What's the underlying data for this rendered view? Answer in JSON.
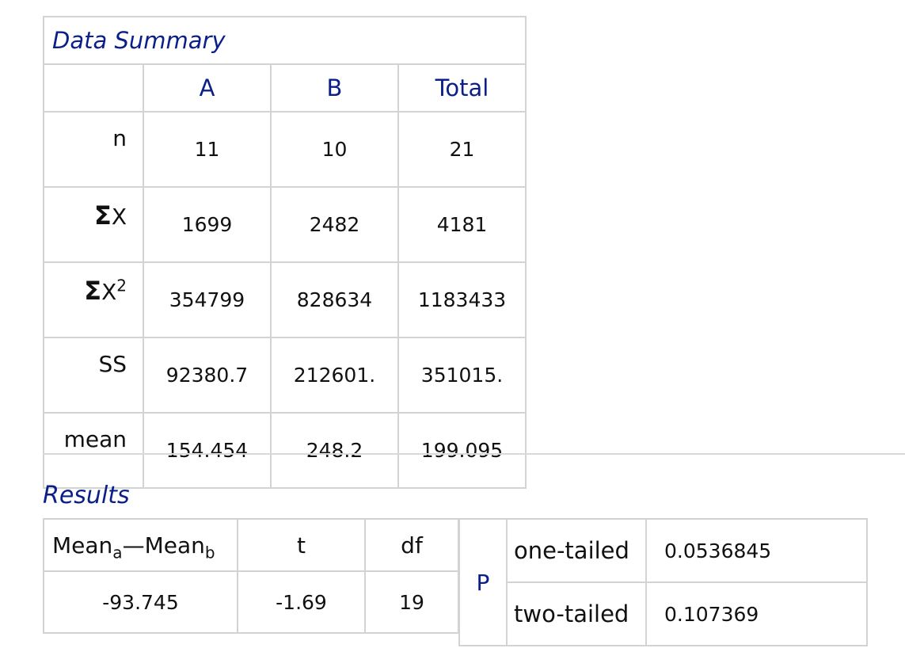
{
  "summary": {
    "title": "Data Summary",
    "columns": [
      "A",
      "B",
      "Total"
    ],
    "rows": {
      "n": {
        "label": "n",
        "values": [
          "11",
          "10",
          "21"
        ]
      },
      "sum_x": {
        "symbol": "Σ",
        "label": "X",
        "values": [
          "1699",
          "2482",
          "4181"
        ]
      },
      "sum_x2": {
        "symbol": "Σ",
        "label": "X",
        "exponent": "2",
        "values": [
          "354799",
          "828634",
          "1183433"
        ]
      },
      "ss": {
        "label": "SS",
        "values": [
          "92380.7",
          "212601.",
          "351015."
        ]
      },
      "mean": {
        "label": "mean",
        "values": [
          "154.454",
          "248.2",
          "199.095"
        ]
      }
    }
  },
  "results": {
    "title": "Results",
    "diff_header": {
      "main_a": "Mean",
      "sub_a": "a",
      "dash": "—",
      "main_b": "Mean",
      "sub_b": "b"
    },
    "t_header": "t",
    "df_header": "df",
    "diff_value": "-93.745",
    "t_value": "-1.69",
    "df_value": "19",
    "p_label": "P",
    "one_tailed_label": "one-tailed",
    "one_tailed_value": "0.0536845",
    "two_tailed_label": "two-tailed",
    "two_tailed_value": "0.107369"
  },
  "colors": {
    "heading_blue": "#0b1f8a",
    "border_gray": "#d3d3d3"
  }
}
